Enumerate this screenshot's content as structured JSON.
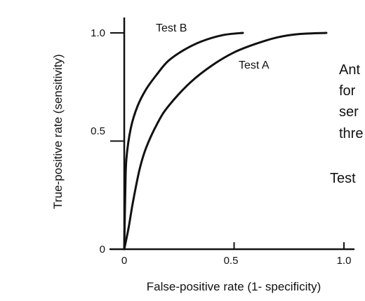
{
  "chart_data": {
    "type": "line",
    "xlabel": "False-positive rate (1- specificity)",
    "ylabel": "True-positive rate (sensitivity)",
    "xlim": [
      0,
      1.0
    ],
    "ylim": [
      0,
      1.0
    ],
    "x_ticks": [
      "0",
      "0.5",
      "1.0"
    ],
    "y_ticks": [
      "0",
      "0.5",
      "1.0"
    ],
    "grid": false,
    "series": [
      {
        "name": "Test B",
        "x": [
          0,
          0.005,
          0.01,
          0.03,
          0.06,
          0.1,
          0.15,
          0.2,
          0.27,
          0.35,
          0.45,
          0.54
        ],
        "y": [
          0,
          0.28,
          0.42,
          0.56,
          0.66,
          0.74,
          0.81,
          0.87,
          0.92,
          0.96,
          0.99,
          1.0
        ]
      },
      {
        "name": "Test A",
        "x": [
          0,
          0.02,
          0.04,
          0.07,
          0.1,
          0.15,
          0.2,
          0.3,
          0.4,
          0.5,
          0.6,
          0.7,
          0.8,
          0.92
        ],
        "y": [
          0,
          0.1,
          0.22,
          0.37,
          0.47,
          0.58,
          0.66,
          0.77,
          0.85,
          0.91,
          0.95,
          0.98,
          0.995,
          1.0
        ]
      }
    ]
  },
  "side_text": {
    "lines": [
      "Ant",
      "for",
      "ser",
      "thre",
      "Test"
    ]
  }
}
